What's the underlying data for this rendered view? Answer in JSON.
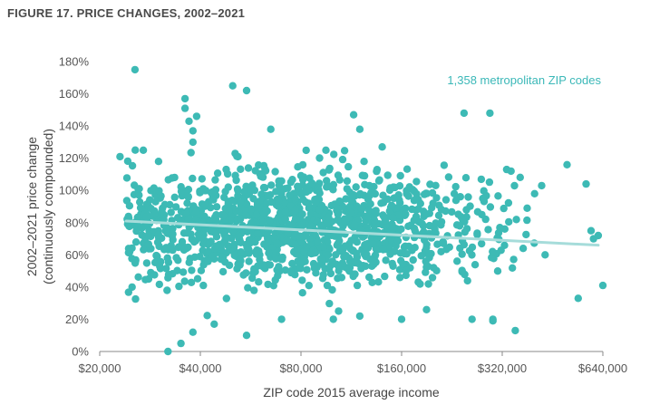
{
  "figure_title": "FIGURE 17. PRICE CHANGES, 2002–2021",
  "colors": {
    "points": "#3dbab5",
    "trend": "#a6dcda",
    "annotation": "#3bb8b8",
    "axis": "#888888"
  },
  "chart_data": {
    "type": "scatter",
    "title": "FIGURE 17. PRICE CHANGES, 2002–2021",
    "xlabel": "ZIP code 2015 average income",
    "ylabel_lines": [
      "2002–2021 price change",
      "(continuously compounded)"
    ],
    "x_scale": "log2",
    "xlim": [
      20000,
      640000
    ],
    "ylim": [
      0,
      180
    ],
    "x_ticks": [
      20000,
      40000,
      80000,
      160000,
      320000,
      640000
    ],
    "x_tick_labels": [
      "$20,000",
      "$40,000",
      "$80,000",
      "$160,000",
      "$320,000",
      "$640,000"
    ],
    "y_ticks": [
      0,
      20,
      40,
      60,
      80,
      100,
      120,
      140,
      160,
      180
    ],
    "y_tick_labels": [
      "0%",
      "20%",
      "40%",
      "60%",
      "80%",
      "100%",
      "120%",
      "140%",
      "160%",
      "180%"
    ],
    "annotation": "1,358 metropolitan ZIP codes",
    "grid": false,
    "trend_line": {
      "x": [
        24000,
        620000
      ],
      "y": [
        81,
        66
      ]
    },
    "outliers": [
      [
        25500,
        175
      ],
      [
        50000,
        165
      ],
      [
        55000,
        162
      ],
      [
        36000,
        157
      ],
      [
        36000,
        151
      ],
      [
        39000,
        146
      ],
      [
        37000,
        143
      ],
      [
        38000,
        137
      ],
      [
        38000,
        130
      ],
      [
        246000,
        148
      ],
      [
        294000,
        148
      ],
      [
        30000,
        118
      ],
      [
        27000,
        125
      ],
      [
        23000,
        121
      ],
      [
        32000,
        0
      ],
      [
        35000,
        5
      ],
      [
        38000,
        12
      ],
      [
        25000,
        40
      ],
      [
        28000,
        45
      ],
      [
        570000,
        104
      ],
      [
        500000,
        116
      ],
      [
        420000,
        103
      ],
      [
        400000,
        98
      ],
      [
        380000,
        89
      ],
      [
        590000,
        75
      ],
      [
        600000,
        70
      ],
      [
        640000,
        41
      ],
      [
        540000,
        33
      ],
      [
        620000,
        72
      ],
      [
        430000,
        60
      ],
      [
        340000,
        112
      ],
      [
        330000,
        113
      ],
      [
        280000,
        95
      ],
      [
        230000,
        98
      ],
      [
        210000,
        62
      ],
      [
        140000,
        127
      ],
      [
        115000,
        147
      ],
      [
        120000,
        138
      ],
      [
        95000,
        125
      ],
      [
        65000,
        138
      ],
      [
        190000,
        26
      ],
      [
        260000,
        20
      ],
      [
        300000,
        19
      ],
      [
        300000,
        20
      ],
      [
        350000,
        13
      ],
      [
        160000,
        20
      ],
      [
        120000,
        22
      ],
      [
        100000,
        20
      ],
      [
        70000,
        20
      ],
      [
        55000,
        10
      ],
      [
        44000,
        17
      ]
    ],
    "cluster": {
      "n": 1307,
      "x_range": [
        24000,
        400000
      ],
      "y_center": 77,
      "y_spread": 17
    }
  }
}
